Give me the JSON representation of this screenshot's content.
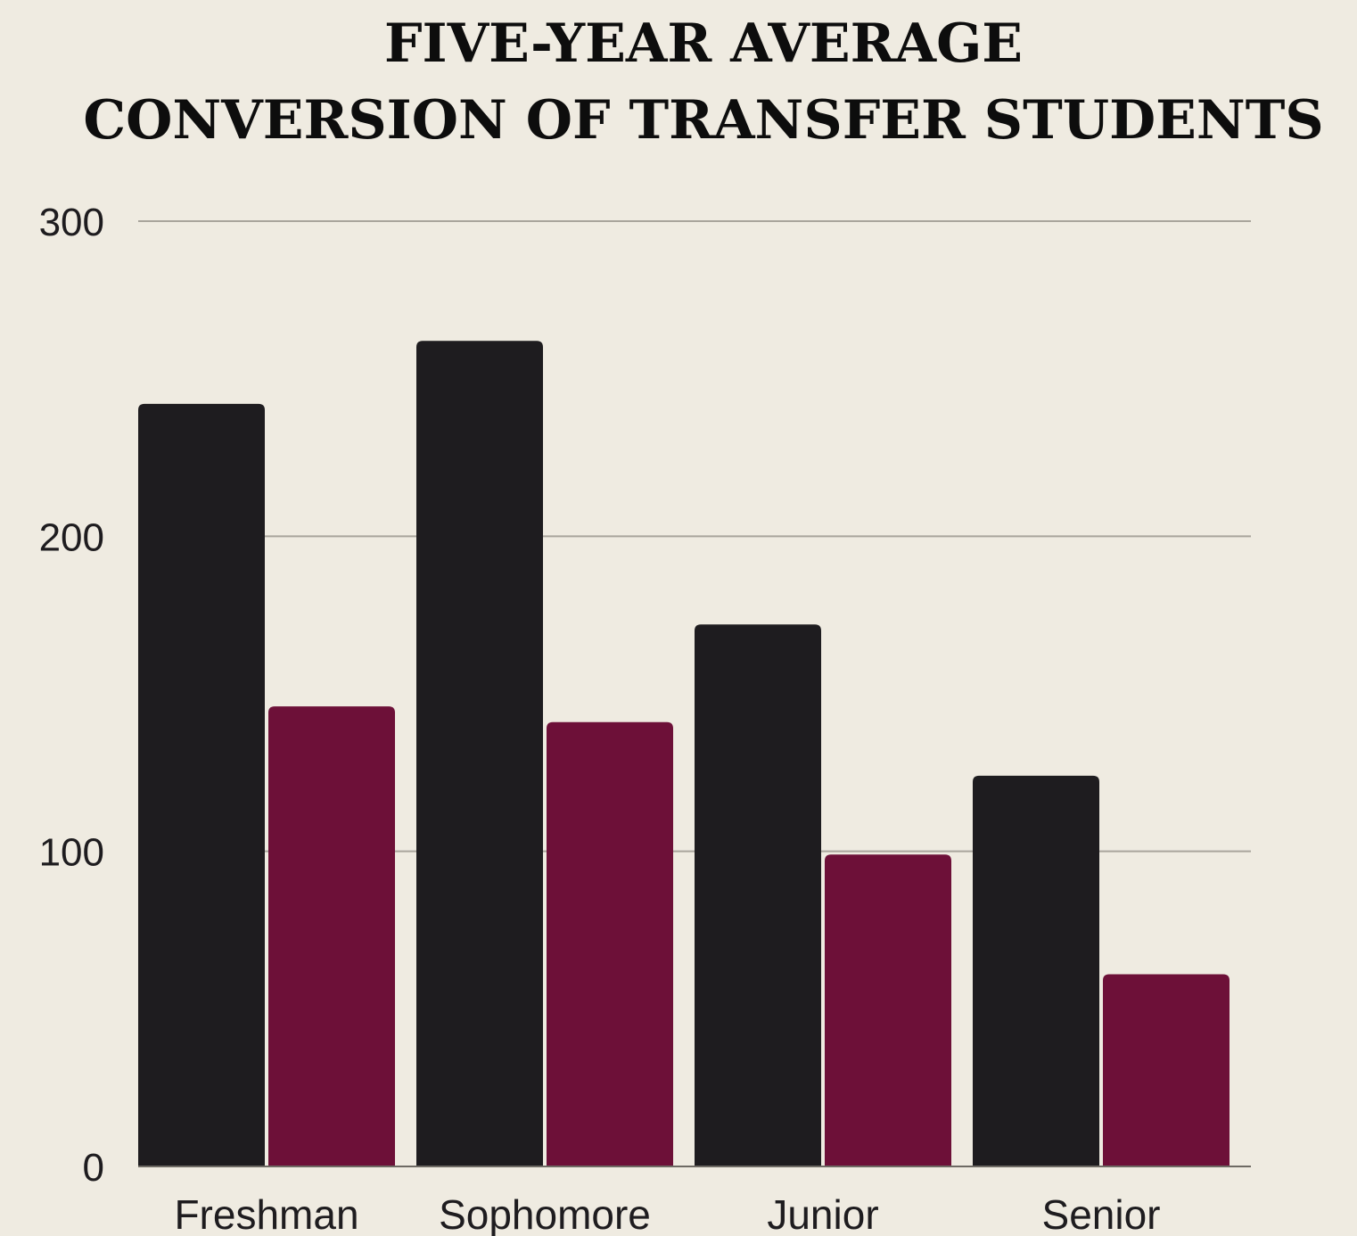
{
  "chart_data": {
    "type": "bar",
    "title_line1": "FIVE-YEAR AVERAGE",
    "title_line2": "CONVERSION OF TRANSFER STUDENTS",
    "categories": [
      "Freshman",
      "Sophomore",
      "Junior",
      "Senior"
    ],
    "series": [
      {
        "values": [
          242,
          262,
          172,
          124
        ],
        "color": "#1e1c1f"
      },
      {
        "values": [
          146,
          141,
          99,
          61
        ],
        "color": "#6d1038"
      }
    ],
    "ylim": [
      0,
      300
    ],
    "yticks": [
      "0",
      "100",
      "200",
      "300"
    ],
    "grid": true,
    "legend": "none"
  }
}
